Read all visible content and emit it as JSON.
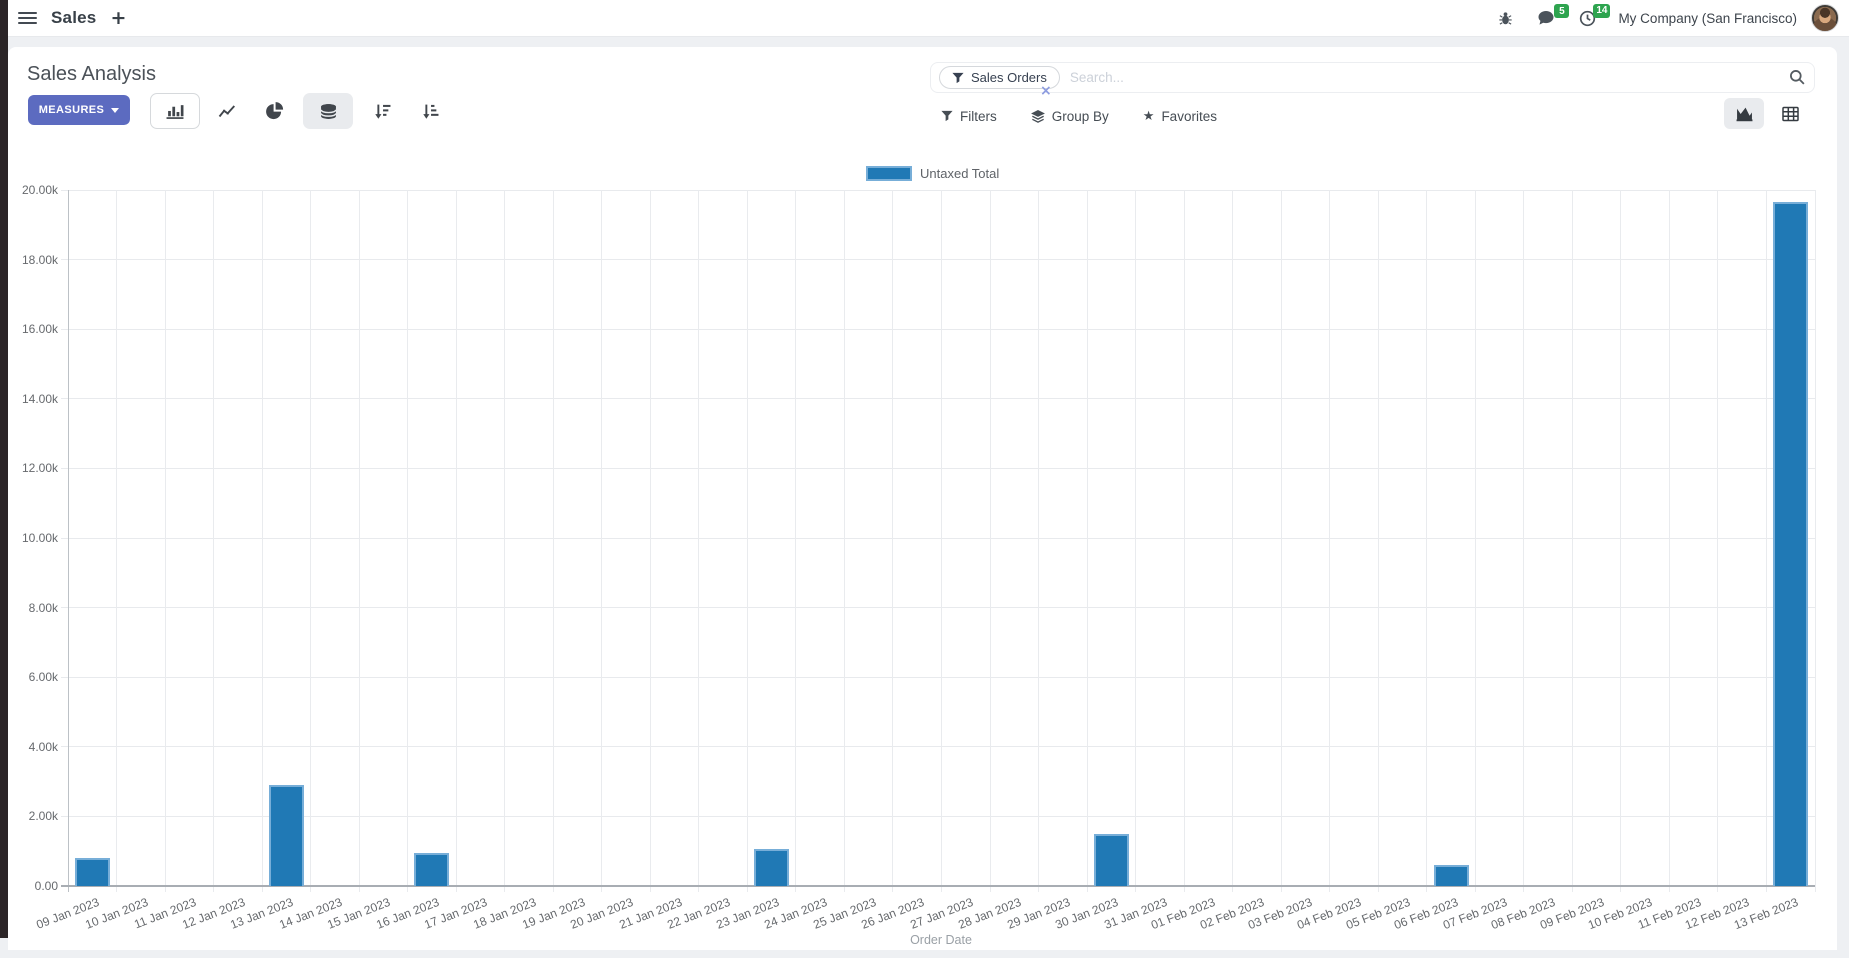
{
  "navbar": {
    "app_name": "Sales",
    "company": "My Company (San Francisco)",
    "badges": {
      "messages": "5",
      "activities": "14"
    }
  },
  "icons": {
    "plus": "+",
    "close": "×",
    "star": "★"
  },
  "control_panel": {
    "title": "Sales Analysis",
    "measures_label": "MEASURES",
    "search": {
      "facet_label": "Sales Orders",
      "placeholder": "Search..."
    },
    "filter_bar": {
      "filters": "Filters",
      "group_by": "Group By",
      "favorites": "Favorites"
    }
  },
  "colors": {
    "accent": "#5c6bc0",
    "bar": "#2079b5",
    "bar_border": "#77aed8",
    "badge_green": "#2ea44f"
  },
  "chart_data": {
    "type": "bar",
    "title": "Sales Analysis",
    "xlabel": "Order Date",
    "ylabel": "",
    "ylim": [
      0,
      20000
    ],
    "grid": true,
    "legend_position": "top",
    "y_ticks": [
      "0.00",
      "2.00k",
      "4.00k",
      "6.00k",
      "8.00k",
      "10.00k",
      "12.00k",
      "14.00k",
      "16.00k",
      "18.00k",
      "20.00k"
    ],
    "categories": [
      "09 Jan 2023",
      "10 Jan 2023",
      "11 Jan 2023",
      "12 Jan 2023",
      "13 Jan 2023",
      "14 Jan 2023",
      "15 Jan 2023",
      "16 Jan 2023",
      "17 Jan 2023",
      "18 Jan 2023",
      "19 Jan 2023",
      "20 Jan 2023",
      "21 Jan 2023",
      "22 Jan 2023",
      "23 Jan 2023",
      "24 Jan 2023",
      "25 Jan 2023",
      "26 Jan 2023",
      "27 Jan 2023",
      "28 Jan 2023",
      "29 Jan 2023",
      "30 Jan 2023",
      "31 Jan 2023",
      "01 Feb 2023",
      "02 Feb 2023",
      "03 Feb 2023",
      "04 Feb 2023",
      "05 Feb 2023",
      "06 Feb 2023",
      "07 Feb 2023",
      "08 Feb 2023",
      "09 Feb 2023",
      "10 Feb 2023",
      "11 Feb 2023",
      "12 Feb 2023",
      "13 Feb 2023"
    ],
    "series": [
      {
        "name": "Untaxed Total",
        "color": "#2079b5",
        "values": [
          800,
          0,
          0,
          0,
          2900,
          0,
          0,
          950,
          0,
          0,
          0,
          0,
          0,
          0,
          1050,
          0,
          0,
          0,
          0,
          0,
          0,
          1500,
          0,
          0,
          0,
          0,
          0,
          0,
          600,
          0,
          0,
          0,
          0,
          0,
          0,
          19650
        ]
      }
    ]
  }
}
